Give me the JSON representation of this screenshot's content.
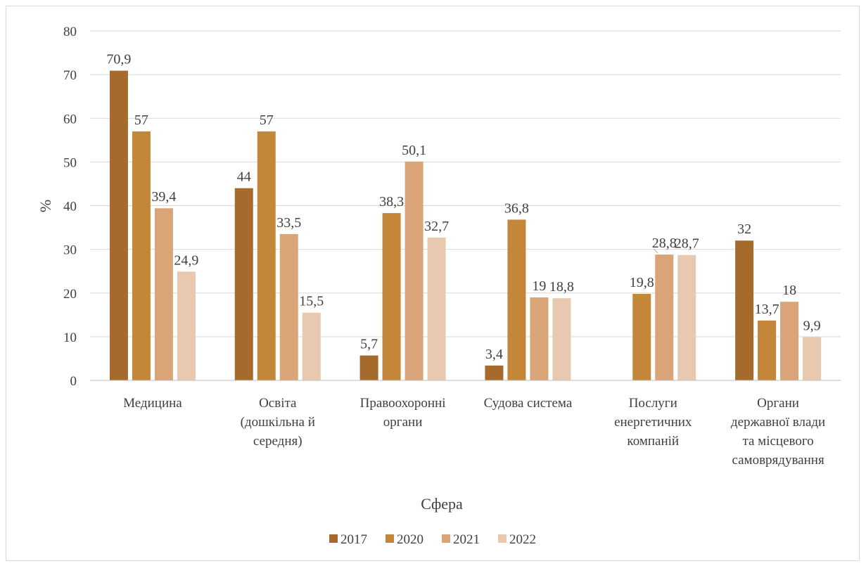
{
  "chart_data": {
    "type": "bar",
    "title": "",
    "xlabel": "Сфера",
    "ylabel": "%",
    "ylim": [
      0,
      80
    ],
    "yticks": [
      0,
      10,
      20,
      30,
      40,
      50,
      60,
      70,
      80
    ],
    "grid": true,
    "legend_position": "bottom",
    "categories": [
      [
        "Медицина"
      ],
      [
        "Освіта",
        "(дошкільна й",
        "середня)"
      ],
      [
        "Правоохоронні",
        "органи"
      ],
      [
        "Судова система"
      ],
      [
        "Послуги",
        "енергетичних",
        "компаній"
      ],
      [
        "Органи",
        "державної влади",
        "та місцевого",
        "самоврядування"
      ]
    ],
    "series": [
      {
        "name": "2017",
        "color": "#A56A2C",
        "values": [
          70.9,
          44,
          5.7,
          3.4,
          null,
          32
        ],
        "labels": [
          "70,9",
          "44",
          "5,7",
          "3,4",
          "",
          "32"
        ]
      },
      {
        "name": "2020",
        "color": "#C4873A",
        "values": [
          57,
          57,
          38.3,
          36.8,
          19.8,
          13.7
        ],
        "labels": [
          "57",
          "57",
          "38,3",
          "36,8",
          "19,8",
          "13,7"
        ]
      },
      {
        "name": "2021",
        "color": "#D9A478",
        "values": [
          39.4,
          33.5,
          50.1,
          19,
          28.8,
          18
        ],
        "labels": [
          "39,4",
          "33,5",
          "50,1",
          "19",
          "28,8",
          "18"
        ]
      },
      {
        "name": "2022",
        "color": "#E8C8AE",
        "values": [
          24.9,
          15.5,
          32.7,
          18.8,
          28.7,
          9.9
        ],
        "labels": [
          "24,9",
          "15,5",
          "32,7",
          "18,8",
          "28,7",
          "9,9"
        ]
      }
    ]
  }
}
